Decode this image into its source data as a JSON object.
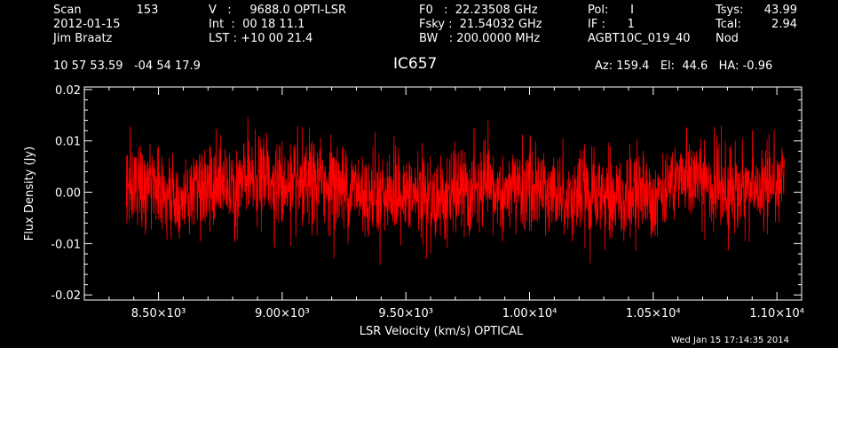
{
  "header": {
    "col1": {
      "scan_label": "Scan",
      "scan_value": "153",
      "date": "2012-01-15",
      "observer": "Jim Braatz"
    },
    "col2": {
      "line1": "V   :     9688.0 OPTI-LSR",
      "line2": "Int  :  00 18 11.1",
      "line3": "LST : +10 00 21.4"
    },
    "col3": {
      "line1": "F0   :  22.23508 GHz",
      "line2": "Fsky :  21.54032 GHz",
      "line3": "BW   : 200.0000 MHz"
    },
    "col4": {
      "line1": "Pol:      I",
      "line2": "IF :      1",
      "line3": "AGBT10C_019_40"
    },
    "col5": {
      "tsys_label": "Tsys:",
      "tsys_value": "43.99",
      "tcal_label": "Tcal:",
      "tcal_value": "2.94",
      "mode": "Nod"
    },
    "coords": "10 57 53.59   -04 54 17.9",
    "pointing": "Az: 159.4   El:  44.6   HA: -0.96",
    "timestamp": "Wed Jan 15 17:14:35 2014"
  },
  "chart_data": {
    "type": "line",
    "title": "IC657",
    "xlabel": "LSR Velocity (km/s) OPTICAL",
    "ylabel": "Flux Density (Jy)",
    "xlim": [
      8200,
      11100
    ],
    "ylim": [
      -0.021,
      0.0205
    ],
    "grid": false,
    "color": "#ff0000",
    "x_range": [
      8370,
      11030
    ],
    "noise_rms": 0.0042,
    "y_mean": 0.0005,
    "x_ticks": [
      {
        "value": 8500,
        "label": "8.50×10³"
      },
      {
        "value": 9000,
        "label": "9.00×10³"
      },
      {
        "value": 9500,
        "label": "9.50×10³"
      },
      {
        "value": 10000,
        "label": "1.00×10⁴"
      },
      {
        "value": 10500,
        "label": "1.05×10⁴"
      },
      {
        "value": 11000,
        "label": "1.10×10⁴"
      }
    ],
    "y_ticks": [
      {
        "value": 0.02,
        "label": "0.02"
      },
      {
        "value": 0.01,
        "label": "0.01"
      },
      {
        "value": 0.0,
        "label": "0.00"
      },
      {
        "value": -0.01,
        "label": "-0.01"
      },
      {
        "value": -0.02,
        "label": "-0.02"
      }
    ]
  }
}
